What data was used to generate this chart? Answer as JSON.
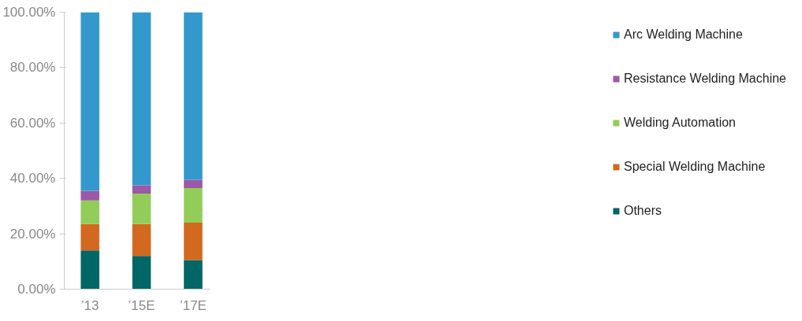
{
  "chart_data": {
    "type": "bar",
    "stacked": true,
    "categories": [
      "’13",
      "’15E",
      "’17E"
    ],
    "series": [
      {
        "name": "Others",
        "color": "#006666",
        "values": [
          14,
          12,
          10.5
        ]
      },
      {
        "name": "Special Welding Machine",
        "color": "#d2691e",
        "values": [
          9.5,
          11.5,
          13.5
        ]
      },
      {
        "name": "Welding Automation",
        "color": "#92cd5a",
        "values": [
          8.5,
          11,
          12.5
        ]
      },
      {
        "name": "Resistance Welding Machine",
        "color": "#9b59a6",
        "values": [
          3.5,
          3,
          3
        ]
      },
      {
        "name": "Arc Welding Machine",
        "color": "#3399cc",
        "values": [
          64.5,
          62.5,
          60.5
        ]
      }
    ],
    "ylim": [
      0,
      100
    ],
    "yticks": [
      {
        "value": 0,
        "label": "0.00%"
      },
      {
        "value": 20,
        "label": "20.00%"
      },
      {
        "value": 40,
        "label": "40.00%"
      },
      {
        "value": 60,
        "label": "60.00%"
      },
      {
        "value": 80,
        "label": "80.00%"
      },
      {
        "value": 100,
        "label": "100.00%"
      }
    ],
    "grid": false,
    "legend": "right"
  }
}
